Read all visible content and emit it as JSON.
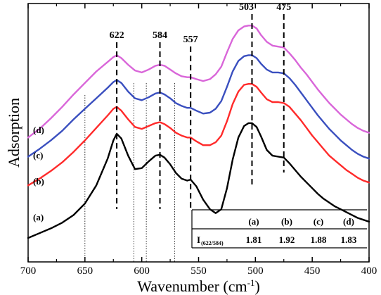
{
  "chart_data": {
    "type": "line",
    "xlabel_base": "Wavenumber (cm",
    "xlabel_sup": "-1",
    "xlabel_close": ")",
    "ylabel": "Adsorption",
    "xlim": [
      700,
      400
    ],
    "x_reversed": true,
    "x_ticks": [
      700,
      650,
      600,
      550,
      500,
      450,
      400
    ],
    "y_ticks": [],
    "grid": false,
    "series": [
      {
        "name": "(a)",
        "color": "#000000",
        "x": [
          700,
          690,
          680,
          670,
          660,
          650,
          640,
          630,
          625,
          622,
          618,
          612,
          606,
          600,
          594,
          588,
          584,
          580,
          575,
          570,
          565,
          560,
          557,
          552,
          546,
          540,
          535,
          530,
          525,
          520,
          515,
          510,
          506,
          503,
          499,
          495,
          490,
          485,
          480,
          475,
          470,
          465,
          460,
          455,
          450,
          445,
          440,
          435,
          430,
          425,
          420,
          415,
          410,
          405,
          400
        ],
        "y": [
          0.0,
          0.05,
          0.1,
          0.16,
          0.24,
          0.36,
          0.55,
          0.83,
          1.02,
          1.09,
          1.04,
          0.86,
          0.72,
          0.73,
          0.8,
          0.86,
          0.87,
          0.84,
          0.77,
          0.68,
          0.62,
          0.6,
          0.61,
          0.54,
          0.4,
          0.3,
          0.26,
          0.3,
          0.52,
          0.82,
          1.05,
          1.17,
          1.2,
          1.2,
          1.16,
          1.06,
          0.92,
          0.86,
          0.85,
          0.84,
          0.78,
          0.71,
          0.64,
          0.58,
          0.52,
          0.46,
          0.41,
          0.37,
          0.33,
          0.3,
          0.27,
          0.24,
          0.21,
          0.19,
          0.17
        ]
      },
      {
        "name": "(b)",
        "color": "#ff2a2a",
        "x": [
          700,
          690,
          680,
          670,
          660,
          650,
          640,
          630,
          625,
          622,
          618,
          612,
          606,
          600,
          594,
          588,
          584,
          580,
          575,
          570,
          565,
          560,
          557,
          552,
          546,
          540,
          535,
          530,
          525,
          520,
          515,
          510,
          506,
          503,
          499,
          495,
          490,
          485,
          480,
          475,
          470,
          465,
          460,
          455,
          450,
          445,
          440,
          435,
          430,
          425,
          420,
          415,
          410,
          405,
          400
        ],
        "y": [
          0.55,
          0.62,
          0.7,
          0.79,
          0.9,
          1.02,
          1.15,
          1.28,
          1.35,
          1.37,
          1.33,
          1.24,
          1.16,
          1.14,
          1.17,
          1.2,
          1.21,
          1.19,
          1.15,
          1.1,
          1.07,
          1.05,
          1.05,
          1.01,
          0.97,
          0.97,
          1.0,
          1.07,
          1.22,
          1.4,
          1.53,
          1.6,
          1.61,
          1.61,
          1.58,
          1.52,
          1.45,
          1.42,
          1.42,
          1.41,
          1.37,
          1.3,
          1.23,
          1.15,
          1.07,
          1.0,
          0.93,
          0.86,
          0.81,
          0.76,
          0.71,
          0.67,
          0.63,
          0.6,
          0.58
        ]
      },
      {
        "name": "(c)",
        "color": "#3a4fbf",
        "x": [
          700,
          690,
          680,
          670,
          660,
          650,
          640,
          630,
          625,
          622,
          618,
          612,
          606,
          600,
          594,
          588,
          584,
          580,
          575,
          570,
          565,
          560,
          557,
          552,
          546,
          540,
          535,
          530,
          525,
          520,
          515,
          510,
          506,
          503,
          499,
          495,
          490,
          485,
          480,
          475,
          470,
          465,
          460,
          455,
          450,
          445,
          440,
          435,
          430,
          425,
          420,
          415,
          410,
          405,
          400
        ],
        "y": [
          0.85,
          0.93,
          1.02,
          1.12,
          1.24,
          1.35,
          1.46,
          1.57,
          1.63,
          1.65,
          1.62,
          1.53,
          1.46,
          1.44,
          1.47,
          1.51,
          1.52,
          1.5,
          1.46,
          1.41,
          1.38,
          1.36,
          1.36,
          1.33,
          1.3,
          1.31,
          1.35,
          1.43,
          1.58,
          1.74,
          1.85,
          1.9,
          1.91,
          1.91,
          1.88,
          1.82,
          1.76,
          1.73,
          1.73,
          1.72,
          1.67,
          1.6,
          1.52,
          1.44,
          1.36,
          1.28,
          1.21,
          1.14,
          1.08,
          1.02,
          0.97,
          0.92,
          0.88,
          0.85,
          0.83
        ]
      },
      {
        "name": "(d)",
        "color": "#d966d9",
        "x": [
          700,
          690,
          680,
          670,
          660,
          650,
          640,
          630,
          625,
          622,
          618,
          612,
          606,
          600,
          594,
          588,
          584,
          580,
          575,
          570,
          565,
          560,
          557,
          552,
          546,
          540,
          535,
          530,
          525,
          520,
          515,
          510,
          506,
          503,
          499,
          495,
          490,
          485,
          480,
          475,
          470,
          465,
          460,
          455,
          450,
          445,
          440,
          435,
          430,
          425,
          420,
          415,
          410,
          405,
          400
        ],
        "y": [
          1.05,
          1.14,
          1.25,
          1.37,
          1.5,
          1.62,
          1.74,
          1.84,
          1.89,
          1.91,
          1.88,
          1.81,
          1.75,
          1.73,
          1.76,
          1.8,
          1.81,
          1.8,
          1.76,
          1.72,
          1.69,
          1.68,
          1.68,
          1.66,
          1.64,
          1.66,
          1.71,
          1.79,
          1.94,
          2.08,
          2.17,
          2.21,
          2.22,
          2.22,
          2.19,
          2.12,
          2.05,
          2.01,
          2.0,
          1.99,
          1.93,
          1.86,
          1.78,
          1.71,
          1.63,
          1.55,
          1.48,
          1.41,
          1.35,
          1.29,
          1.24,
          1.19,
          1.15,
          1.12,
          1.1
        ]
      }
    ],
    "peak_annotations": [
      {
        "label": "622",
        "x": 622
      },
      {
        "label": "584",
        "x": 584
      },
      {
        "label": "557",
        "x": 557
      },
      {
        "label": "503",
        "x": 503
      },
      {
        "label": "475",
        "x": 475
      }
    ],
    "dotted_lines_x": [
      650,
      607,
      596,
      571
    ],
    "inset_table": {
      "row_label_main": "I",
      "row_label_sub": "(622/584)",
      "columns": [
        "(a)",
        "(b)",
        "(c)",
        "(d)"
      ],
      "values": [
        "1.81",
        "1.92",
        "1.88",
        "1.83"
      ]
    }
  }
}
